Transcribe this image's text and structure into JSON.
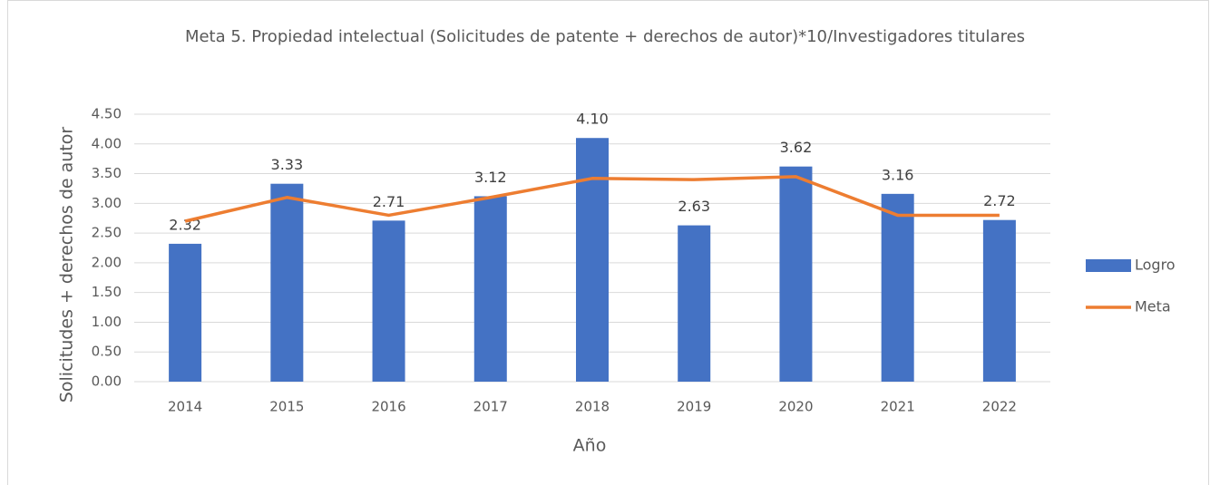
{
  "chart_data": {
    "type": "bar",
    "title": "Meta 5. Propiedad intelectual (Solicitudes de patente + derechos de autor)*10/Investigadores titulares",
    "x_label": "Año",
    "y_label": "Solicitudes + derechos de autor",
    "categories": [
      "2014",
      "2015",
      "2016",
      "2017",
      "2018",
      "2019",
      "2020",
      "2021",
      "2022"
    ],
    "series": [
      {
        "name": "Logro",
        "type": "bar",
        "color": "#4472c4",
        "values": [
          2.32,
          3.33,
          2.71,
          3.12,
          4.1,
          2.63,
          3.62,
          3.16,
          2.72
        ],
        "value_labels": [
          "2.32",
          "3.33",
          "2.71",
          "3.12",
          "4.10",
          "2.63",
          "3.62",
          "3.16",
          "2.72"
        ]
      },
      {
        "name": "Meta",
        "type": "line",
        "color": "#ed7d31",
        "values": [
          2.7,
          3.1,
          2.8,
          3.1,
          3.42,
          3.4,
          3.45,
          2.8,
          2.8
        ]
      }
    ],
    "ylim": [
      0,
      4.5
    ],
    "yticks": [
      {
        "value": 0,
        "label": "0.00"
      },
      {
        "value": 0.5,
        "label": "0.50"
      },
      {
        "value": 1,
        "label": "1.00"
      },
      {
        "value": 1.5,
        "label": "1.50"
      },
      {
        "value": 2,
        "label": "2.00"
      },
      {
        "value": 2.5,
        "label": "2.50"
      },
      {
        "value": 3,
        "label": "3.00"
      },
      {
        "value": 3.5,
        "label": "3.50"
      },
      {
        "value": 4,
        "label": "4.00"
      },
      {
        "value": 4.5,
        "label": "4.50"
      }
    ],
    "grid": true,
    "legend": "right"
  }
}
